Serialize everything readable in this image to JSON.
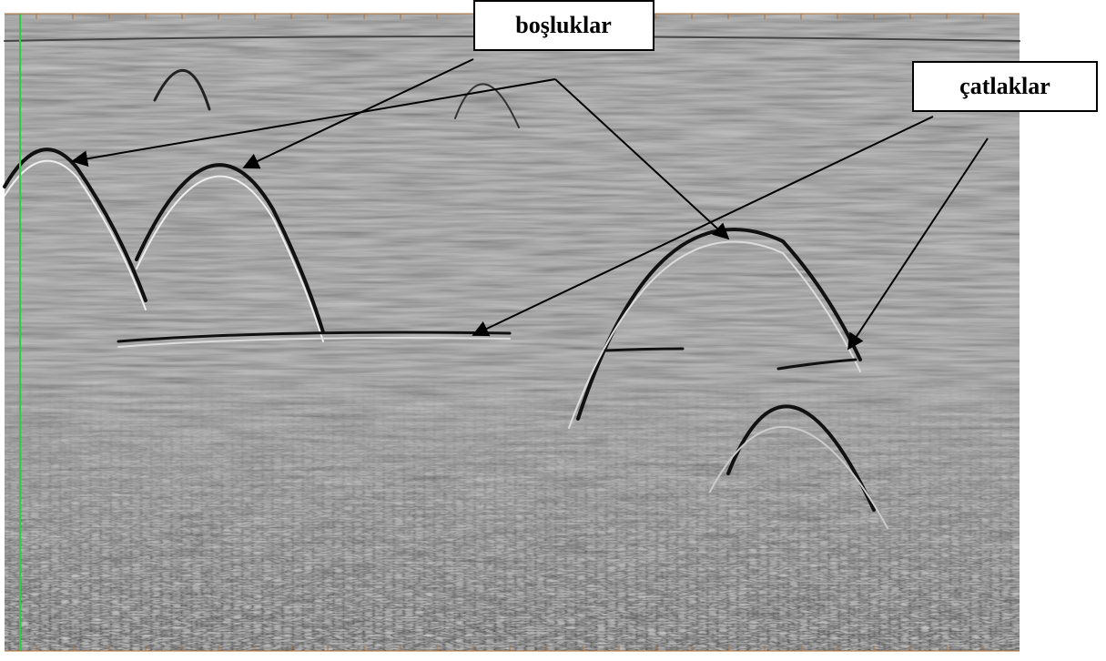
{
  "annotations": {
    "voids_label": "boşluklar",
    "cracks_label": "çatlaklar"
  }
}
